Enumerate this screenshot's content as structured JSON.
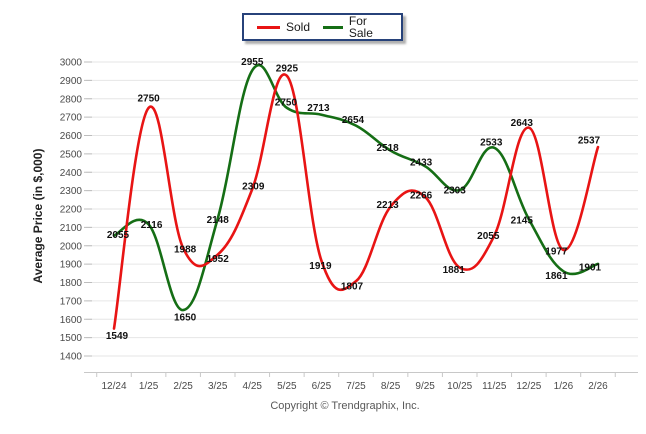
{
  "chart_data": {
    "type": "line",
    "title": "",
    "xlabel": "",
    "ylabel": "Average Price (in $,000)",
    "categories": [
      "12/24",
      "1/25",
      "2/25",
      "3/25",
      "4/25",
      "5/25",
      "6/25",
      "7/25",
      "8/25",
      "9/25",
      "10/25",
      "11/25",
      "12/25",
      "1/26",
      "2/26"
    ],
    "series": [
      {
        "name": "Sold",
        "color": "#e81414",
        "values": [
          1549,
          2750,
          1988,
          1952,
          2309,
          2925,
          1919,
          1807,
          2213,
          2266,
          1881,
          2055,
          2643,
          1977,
          2537
        ]
      },
      {
        "name": "For Sale",
        "color": "#156e15",
        "values": [
          2055,
          2116,
          1650,
          2148,
          2955,
          2750,
          2713,
          2654,
          2518,
          2433,
          2303,
          2533,
          2145,
          1861,
          1901
        ]
      }
    ],
    "ylim": [
      1400,
      3000
    ],
    "ytick_step": 100,
    "grid": "horizontal",
    "legend_position": "top-center",
    "show_point_labels": true,
    "line_smoothing": "spline"
  },
  "legend": {
    "items": [
      {
        "label": "Sold",
        "color": "#e81414"
      },
      {
        "label": "For Sale",
        "color": "#156e15"
      }
    ]
  },
  "footer": {
    "copyright": "Copyright © Trendgraphix, Inc."
  }
}
